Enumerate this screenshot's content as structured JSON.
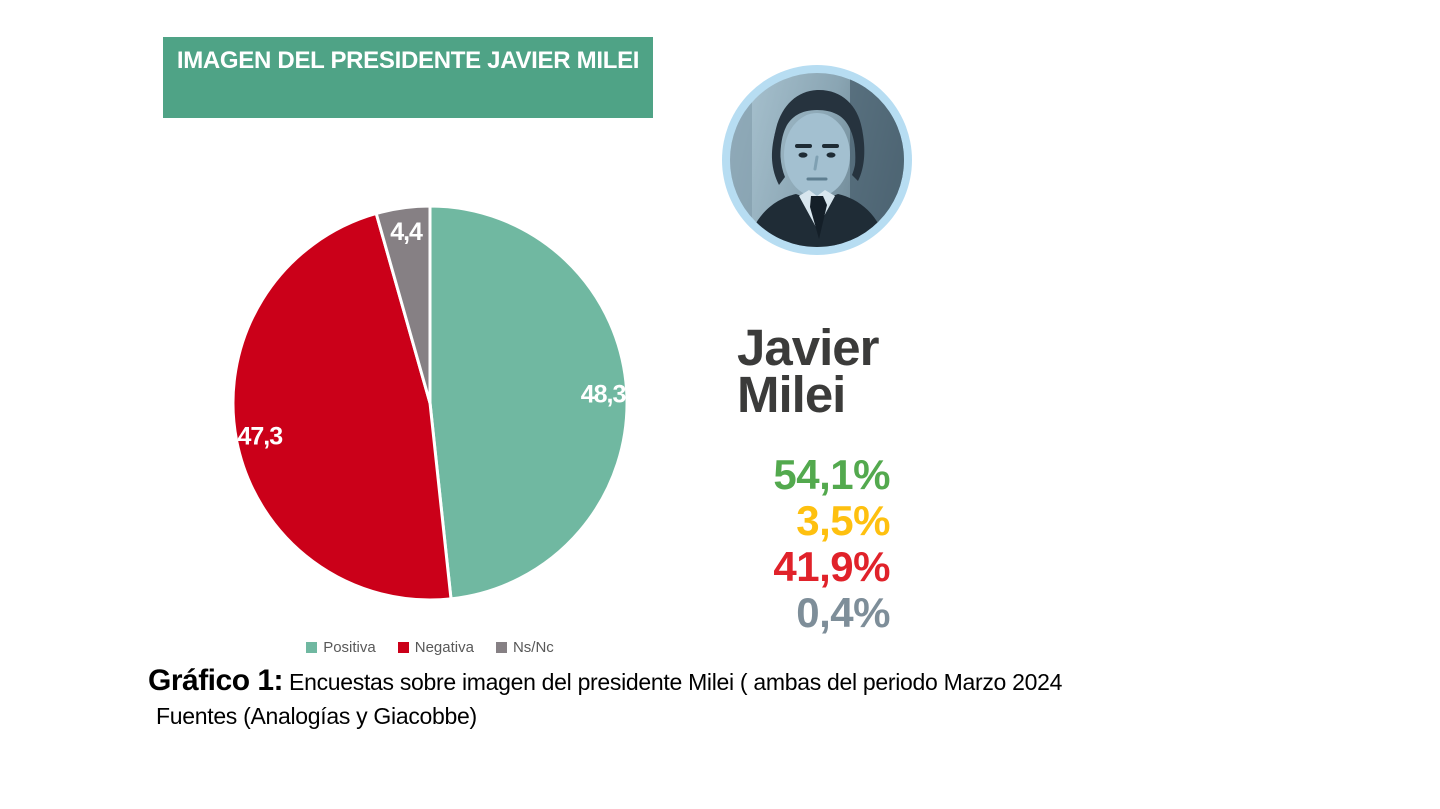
{
  "header": {
    "title": "IMAGEN DEL PRESIDENTE JAVIER MILEI",
    "bg_color": "#4FA386",
    "text_color": "#FFFFFF"
  },
  "chart_data": {
    "type": "pie",
    "title": "IMAGEN DEL PRESIDENTE JAVIER MILEI",
    "categories": [
      "Positiva",
      "Negativa",
      "Ns/Nc"
    ],
    "values": [
      48.3,
      47.3,
      4.4
    ],
    "value_labels": [
      "48,3",
      "47,3",
      "4,4"
    ],
    "colors": [
      "#70B8A1",
      "#CB0019",
      "#868084"
    ],
    "start_angle_deg": 0,
    "direction": "clockwise",
    "legend_position": "bottom",
    "slice_label_color": "#FFFFFF",
    "slice_border_color": "#FFFFFF"
  },
  "profile": {
    "photo": "javier-milei-portrait-blue-tint",
    "ring_color": "#B7DDF2",
    "name_line1": "Javier",
    "name_line2": "Milei",
    "name_color": "#3B3B3A",
    "stats": [
      {
        "value": "54,1%",
        "color": "#53A94E"
      },
      {
        "value": "3,5%",
        "color": "#FEC00F"
      },
      {
        "value": "41,9%",
        "color": "#E0222A"
      },
      {
        "value": "0,4%",
        "color": "#7E8E99"
      }
    ]
  },
  "caption": {
    "label": "Gráfico 1:",
    "text": "Encuestas sobre imagen del presidente Milei ( ambas del periodo Marzo 2024",
    "line2": "Fuentes (Analogías y Giacobbe)"
  }
}
